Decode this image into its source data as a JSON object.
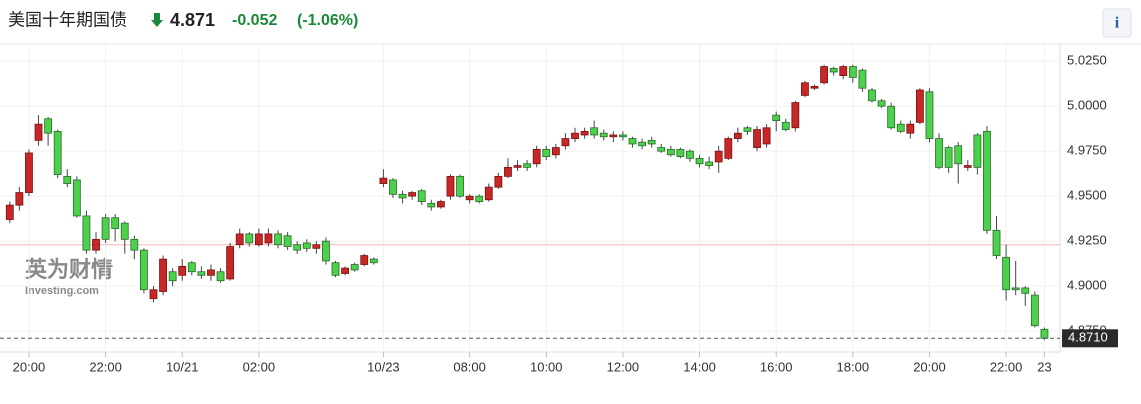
{
  "header": {
    "title": "美国十年期国债",
    "price": 4.871,
    "change": -0.052,
    "change_pct": {
      "value": -1.06,
      "label": "(-1.06%)"
    },
    "info": "i"
  },
  "chart_data": {
    "type": "candlestick",
    "watermark": {
      "brand": "英为财情",
      "site": "Investing.com"
    },
    "categories": [
      null,
      null,
      "20:00",
      null,
      null,
      null,
      null,
      null,
      null,
      null,
      "22:00",
      null,
      null,
      null,
      null,
      null,
      null,
      null,
      "10/21",
      null,
      null,
      null,
      null,
      null,
      null,
      null,
      "02:00",
      null,
      null,
      null,
      null,
      null,
      null,
      null,
      null,
      null,
      null,
      null,
      null,
      "10/23",
      null,
      null,
      null,
      null,
      null,
      null,
      null,
      null,
      "08:00",
      null,
      null,
      null,
      null,
      null,
      null,
      null,
      "10:00",
      null,
      null,
      null,
      null,
      null,
      null,
      null,
      "12:00",
      null,
      null,
      null,
      null,
      null,
      null,
      null,
      "14:00",
      null,
      null,
      null,
      null,
      null,
      null,
      null,
      "16:00",
      null,
      null,
      null,
      null,
      null,
      null,
      null,
      "18:00",
      null,
      null,
      null,
      null,
      null,
      null,
      null,
      "20:00",
      null,
      null,
      null,
      null,
      null,
      null,
      null,
      "22:00",
      null,
      null,
      null,
      "23"
    ],
    "open": [
      4.937,
      4.945,
      4.952,
      4.981,
      4.993,
      4.986,
      4.961,
      4.959,
      4.939,
      4.92,
      4.938,
      4.938,
      4.935,
      4.926,
      4.92,
      4.893,
      4.897,
      4.908,
      4.906,
      4.913,
      4.908,
      4.906,
      4.908,
      4.904,
      4.923,
      4.929,
      4.923,
      4.924,
      4.929,
      4.928,
      4.923,
      4.924,
      4.921,
      4.925,
      4.913,
      4.907,
      4.912,
      4.912,
      4.915,
      4.957,
      4.959,
      4.951,
      4.95,
      4.953,
      4.946,
      4.944,
      4.95,
      4.961,
      4.948,
      4.95,
      4.948,
      4.955,
      4.961,
      4.966,
      4.968,
      4.968,
      4.976,
      4.973,
      4.978,
      4.982,
      4.984,
      4.988,
      4.985,
      4.983,
      4.984,
      4.982,
      4.98,
      4.981,
      4.977,
      4.976,
      4.976,
      4.975,
      4.971,
      4.969,
      4.969,
      4.971,
      4.982,
      4.988,
      4.977,
      4.979,
      4.995,
      4.991,
      4.988,
      5.006,
      5.01,
      5.013,
      5.021,
      5.017,
      5.022,
      5.02,
      5.009,
      5.003,
      5.0,
      4.99,
      4.985,
      4.991,
      5.008,
      4.982,
      4.977,
      4.978,
      4.966,
      4.984,
      4.986,
      4.931,
      4.916,
      4.899,
      4.899,
      4.895,
      4.876
    ],
    "high": [
      4.947,
      4.955,
      4.976,
      4.995,
      4.994,
      4.987,
      4.965,
      4.961,
      4.942,
      4.93,
      4.94,
      4.94,
      4.936,
      4.928,
      4.921,
      4.9,
      4.917,
      4.91,
      4.915,
      4.914,
      4.911,
      4.912,
      4.91,
      4.924,
      4.932,
      4.93,
      4.932,
      4.932,
      4.931,
      4.93,
      4.925,
      4.926,
      4.925,
      4.927,
      4.914,
      4.911,
      4.913,
      4.918,
      4.916,
      4.965,
      4.96,
      4.953,
      4.953,
      4.954,
      4.948,
      4.948,
      4.962,
      4.962,
      4.951,
      4.951,
      4.957,
      4.963,
      4.971,
      4.97,
      4.97,
      4.978,
      4.978,
      4.979,
      4.985,
      4.988,
      4.988,
      4.992,
      4.987,
      4.986,
      4.986,
      4.983,
      4.982,
      4.983,
      4.979,
      4.978,
      4.977,
      4.976,
      4.973,
      4.972,
      4.978,
      4.983,
      4.988,
      4.989,
      4.989,
      4.99,
      4.997,
      4.993,
      5.003,
      5.014,
      5.012,
      5.023,
      5.022,
      5.023,
      5.023,
      5.021,
      5.01,
      5.004,
      5.002,
      4.992,
      4.992,
      5.01,
      5.01,
      4.985,
      4.978,
      4.98,
      4.97,
      4.985,
      4.989,
      4.939,
      4.923,
      4.914,
      4.9,
      4.897,
      4.877
    ],
    "low": [
      4.935,
      4.942,
      4.95,
      4.978,
      4.978,
      4.96,
      4.955,
      4.938,
      4.918,
      4.918,
      4.924,
      4.925,
      4.918,
      4.915,
      4.896,
      4.891,
      4.895,
      4.9,
      4.903,
      4.906,
      4.904,
      4.903,
      4.902,
      4.903,
      4.921,
      4.922,
      4.922,
      4.922,
      4.921,
      4.92,
      4.918,
      4.919,
      4.918,
      4.912,
      4.905,
      4.906,
      4.908,
      4.911,
      4.912,
      4.955,
      4.949,
      4.946,
      4.948,
      4.945,
      4.942,
      4.943,
      4.948,
      4.949,
      4.946,
      4.946,
      4.947,
      4.954,
      4.96,
      4.964,
      4.964,
      4.966,
      4.97,
      4.971,
      4.976,
      4.98,
      4.982,
      4.982,
      4.981,
      4.98,
      4.981,
      4.977,
      4.976,
      4.977,
      4.974,
      4.972,
      4.971,
      4.969,
      4.966,
      4.965,
      4.963,
      4.97,
      4.98,
      4.984,
      4.975,
      4.977,
      4.986,
      4.986,
      4.986,
      5.005,
      5.009,
      5.012,
      5.017,
      5.015,
      5.013,
      5.008,
      5.002,
      4.999,
      4.987,
      4.985,
      4.982,
      4.99,
      4.98,
      4.965,
      4.963,
      4.957,
      4.964,
      4.962,
      4.929,
      4.915,
      4.892,
      4.895,
      4.889,
      4.877,
      4.87
    ],
    "close": [
      4.945,
      4.952,
      4.974,
      4.99,
      4.985,
      4.962,
      4.957,
      4.939,
      4.92,
      4.926,
      4.926,
      4.932,
      4.926,
      4.92,
      4.898,
      4.898,
      4.915,
      4.903,
      4.911,
      4.908,
      4.906,
      4.909,
      4.903,
      4.922,
      4.929,
      4.924,
      4.929,
      4.929,
      4.923,
      4.922,
      4.92,
      4.921,
      4.923,
      4.914,
      4.906,
      4.91,
      4.909,
      4.917,
      4.913,
      4.96,
      4.951,
      4.949,
      4.952,
      4.947,
      4.944,
      4.947,
      4.961,
      4.95,
      4.95,
      4.947,
      4.955,
      4.961,
      4.966,
      4.967,
      4.966,
      4.976,
      4.972,
      4.977,
      4.982,
      4.985,
      4.986,
      4.984,
      4.983,
      4.984,
      4.983,
      4.979,
      4.978,
      4.979,
      4.975,
      4.973,
      4.972,
      4.971,
      4.968,
      4.967,
      4.975,
      4.982,
      4.985,
      4.986,
      4.987,
      4.988,
      4.992,
      4.987,
      5.002,
      5.013,
      5.011,
      5.022,
      5.019,
      5.022,
      5.016,
      5.01,
      5.003,
      5.0,
      4.988,
      4.986,
      4.99,
      5.009,
      4.982,
      4.966,
      4.966,
      4.968,
      4.967,
      4.966,
      4.931,
      4.917,
      4.898,
      4.898,
      4.896,
      4.878,
      4.871
    ],
    "up_color": "#c62828",
    "down_color": "#4cd14c",
    "ylim": [
      4.8645,
      5.034
    ],
    "yticks": [
      {
        "value": 4.875,
        "label": "4.8750"
      },
      {
        "value": 4.9,
        "label": "4.9000"
      },
      {
        "value": 4.925,
        "label": "4.9250"
      },
      {
        "value": 4.95,
        "label": "4.9500"
      },
      {
        "value": 4.975,
        "label": "4.9750"
      },
      {
        "value": 5,
        "label": "5.0000"
      },
      {
        "value": 5.025,
        "label": "5.0250"
      }
    ],
    "prev_close": 4.923,
    "last": {
      "value": 4.871,
      "label": "4.8710"
    },
    "grid": true
  }
}
